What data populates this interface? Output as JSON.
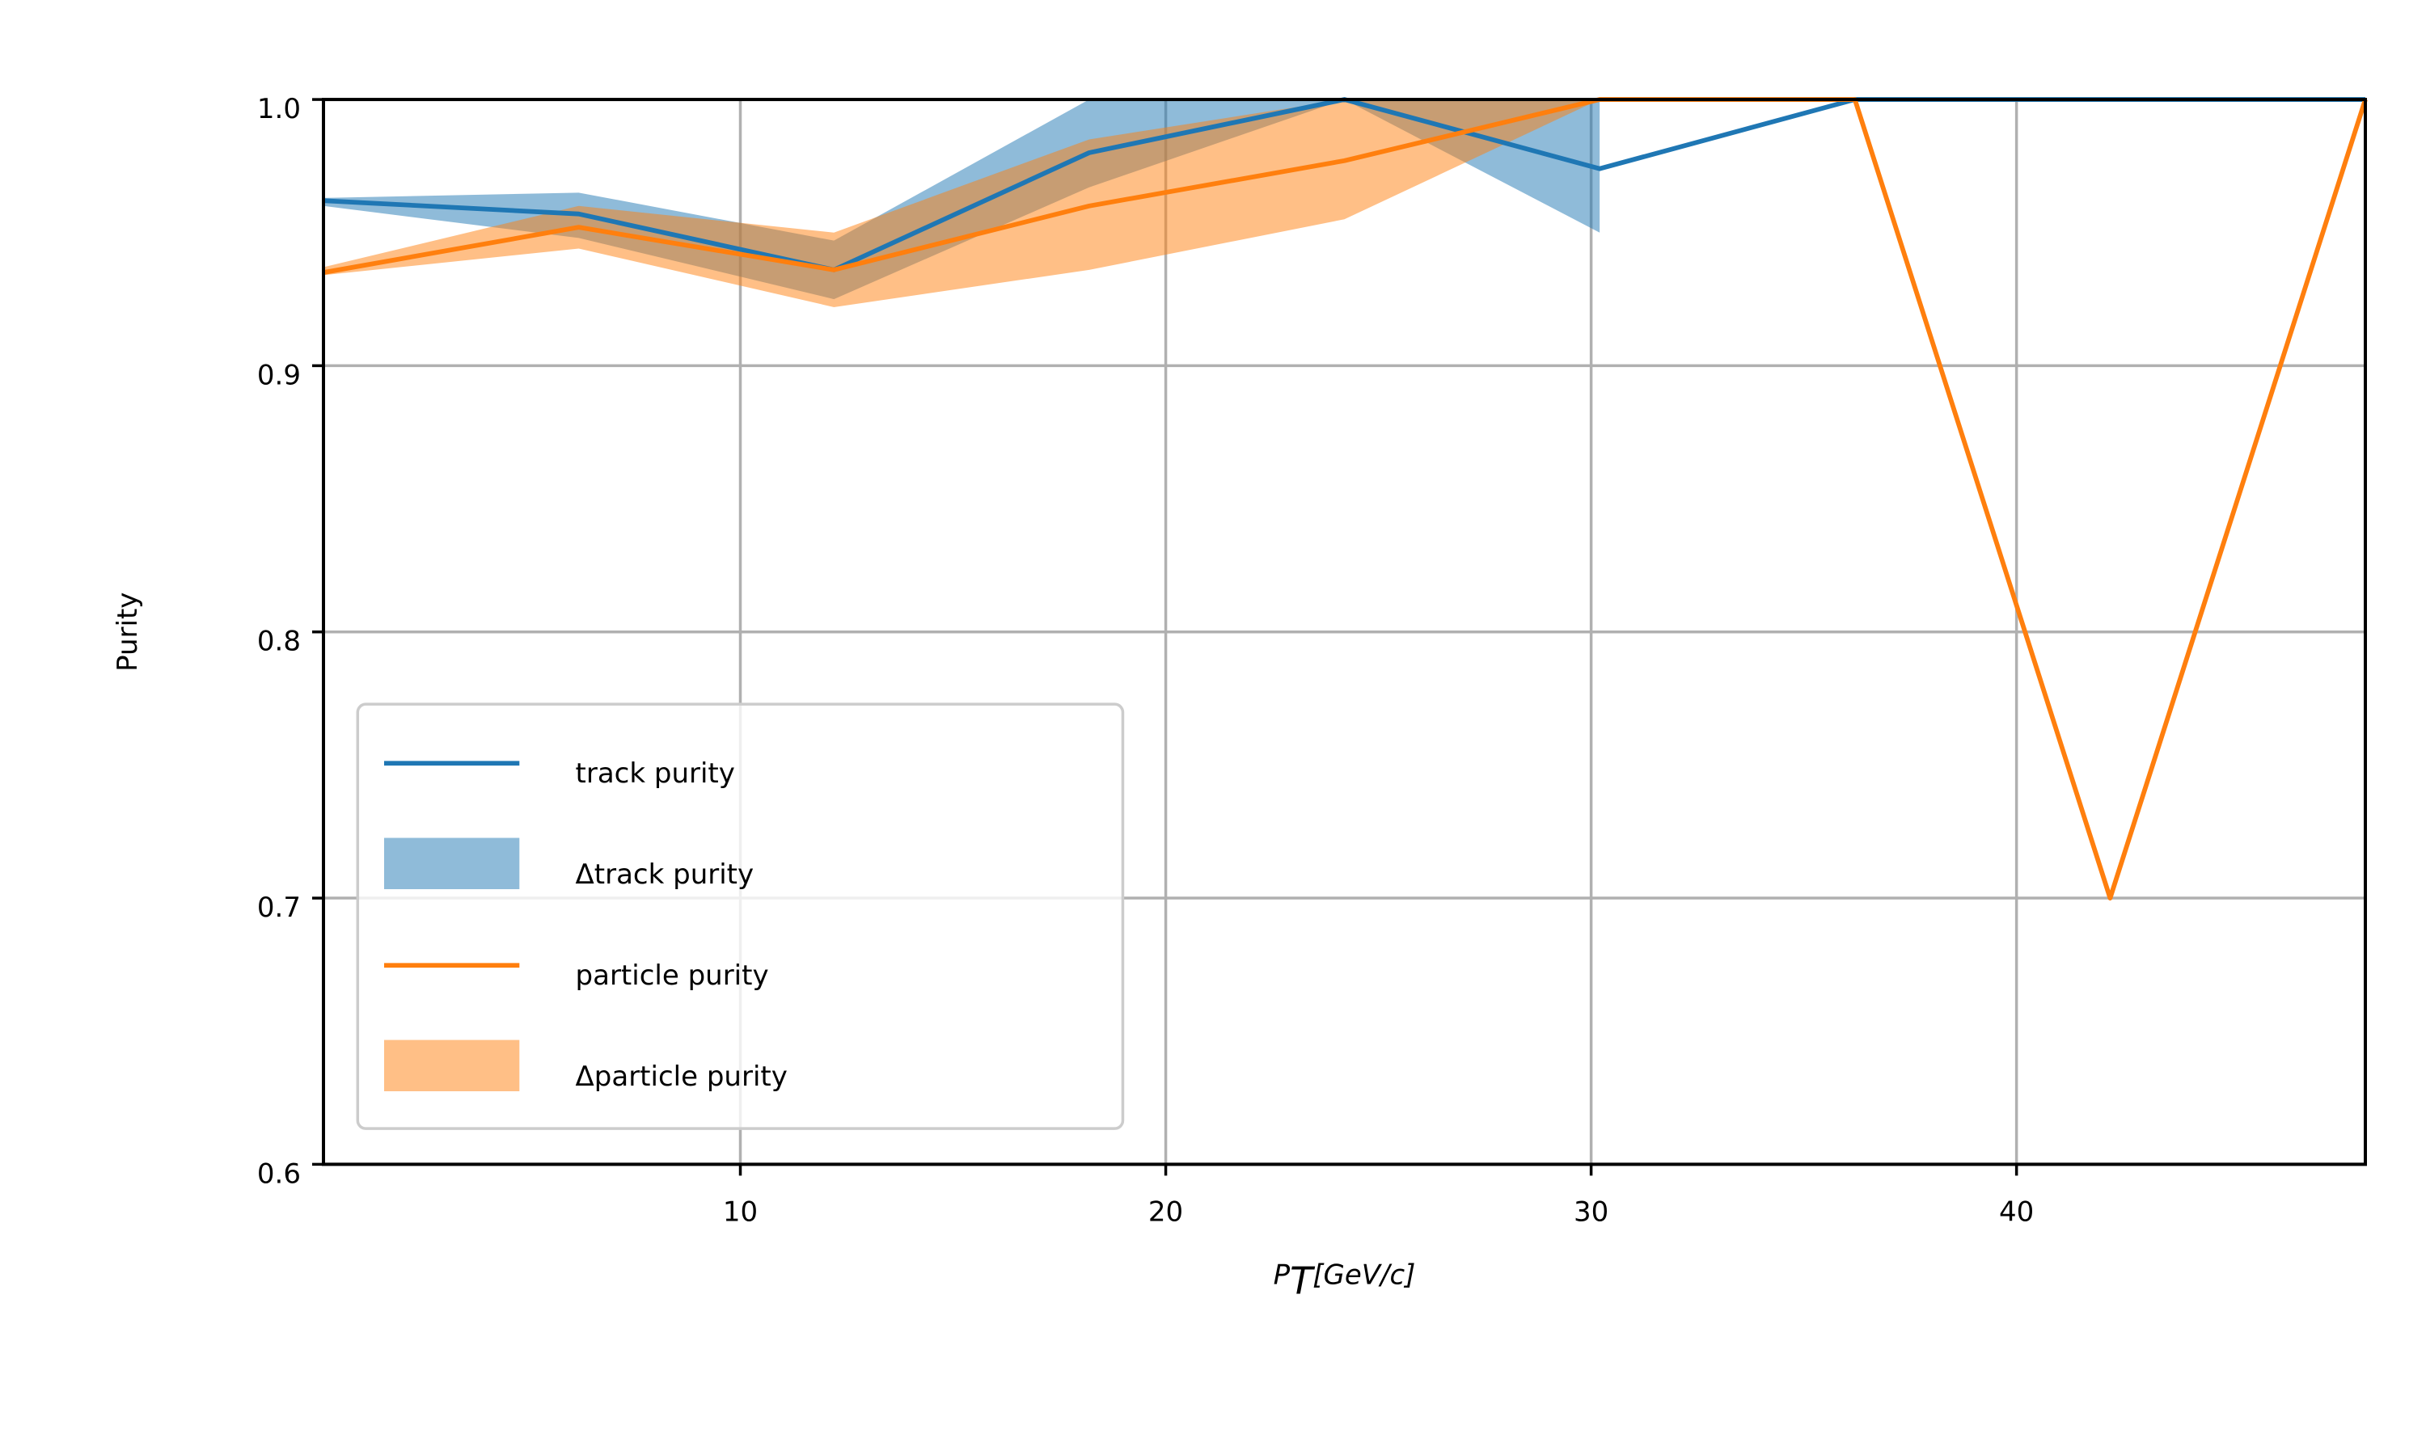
{
  "chart_data": {
    "type": "line",
    "xlabel": "P_T[GeV/c]",
    "ylabel": "Purity",
    "xlim": [
      0.2,
      48.2
    ],
    "ylim": [
      0.6,
      1.0
    ],
    "xticks": [
      10,
      20,
      30,
      40
    ],
    "xtick_labels": [
      "10",
      "20",
      "30",
      "40"
    ],
    "yticks": [
      0.6,
      0.7,
      0.8,
      0.9,
      1.0
    ],
    "ytick_labels": [
      "0.6",
      "0.7",
      "0.8",
      "0.9",
      "1.0"
    ],
    "grid": true,
    "legend_position": "lower-left",
    "x": [
      0.2,
      6.2,
      12.2,
      18.2,
      24.2,
      30.2,
      36.2,
      42.2,
      48.2
    ],
    "series": [
      {
        "name": "track purity",
        "style": "line",
        "color": "#1f77b4",
        "values": [
          0.962,
          0.957,
          0.936,
          0.98,
          1.0,
          0.974,
          1.0,
          1.0,
          1.0
        ]
      },
      {
        "name": "Δtrack purity",
        "style": "band",
        "color": "#1f77b4",
        "x": [
          0.2,
          6.2,
          12.2,
          18.2,
          24.2,
          30.2
        ],
        "lower": [
          0.96,
          0.948,
          0.925,
          0.967,
          1.0,
          0.95
        ],
        "upper": [
          0.963,
          0.965,
          0.947,
          1.0,
          1.0,
          1.0
        ]
      },
      {
        "name": "particle purity",
        "style": "line",
        "color": "#ff7f0e",
        "values": [
          0.935,
          0.952,
          0.936,
          0.96,
          0.977,
          1.0,
          1.0,
          0.7,
          1.0
        ]
      },
      {
        "name": "Δparticle purity",
        "style": "band",
        "color": "#ff7f0e",
        "x": [
          0.2,
          6.2,
          12.2,
          18.2,
          24.2,
          30.2,
          36.2
        ],
        "lower": [
          0.934,
          0.944,
          0.922,
          0.936,
          0.955,
          1.0,
          1.0
        ],
        "upper": [
          0.937,
          0.96,
          0.95,
          0.985,
          1.0,
          1.0,
          1.0
        ]
      }
    ]
  }
}
